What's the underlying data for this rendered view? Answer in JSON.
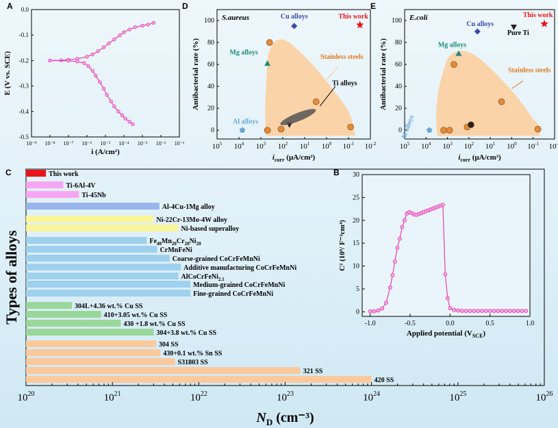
{
  "panels": {
    "A": "A",
    "B": "B",
    "C": "C",
    "D": "D",
    "E": "E"
  },
  "colors": {
    "pink": "#e040b0",
    "orange_region": "#fbd3a8",
    "red": "#e8161b",
    "blue_marker": "#3b49a8",
    "teal": "#1c8a7c",
    "al_blue": "#6aa7d6",
    "bar_orange": "#fbc99c",
    "bar_green": "#9ad89a",
    "bar_blue": "#9fd1ef",
    "bar_yellow": "#fbf59a",
    "bar_periwinkle": "#9ab4ec",
    "bar_pink": "#f7a6f3"
  },
  "chart_data": [
    {
      "id": "A",
      "type": "line",
      "xlabel": "i (A/cm²)",
      "ylabel": "E (V vs. SCE)",
      "xscale": "log",
      "xlim": [
        1e-09,
        0.1
      ],
      "ylim": [
        -0.5,
        0.0
      ],
      "x_ticks": [
        "10⁻⁹",
        "10⁻⁸",
        "10⁻⁷",
        "10⁻⁶",
        "10⁻⁵",
        "10⁻⁴",
        "10⁻³",
        "10⁻²",
        "10⁻¹"
      ],
      "y_ticks": [
        "0.0",
        "-0.1",
        "-0.2",
        "-0.3",
        "-0.4",
        "-0.5"
      ],
      "series": [
        {
          "x": [
            1e-08,
            4e-08,
            1e-07,
            3e-07,
            1e-06,
            2e-06,
            4e-06,
            8e-06,
            1.5e-05,
            3e-05,
            6e-05,
            0.0001,
            0.0002,
            0.0004,
            0.001,
            0.002,
            0.004
          ],
          "y": [
            -0.2,
            -0.199,
            -0.197,
            -0.193,
            -0.185,
            -0.176,
            -0.163,
            -0.148,
            -0.133,
            -0.117,
            -0.101,
            -0.089,
            -0.078,
            -0.069,
            -0.063,
            -0.059,
            -0.052
          ]
        },
        {
          "x": [
            1e-08,
            1e-07,
            3e-07,
            7e-07,
            1.2e-06,
            2e-06,
            3e-06,
            5e-06,
            8e-06,
            1.2e-05,
            2e-05,
            3e-05,
            5e-05,
            8e-05,
            0.00012,
            0.0002,
            0.0003
          ],
          "y": [
            -0.2,
            -0.201,
            -0.204,
            -0.21,
            -0.222,
            -0.24,
            -0.26,
            -0.285,
            -0.31,
            -0.335,
            -0.36,
            -0.38,
            -0.4,
            -0.415,
            -0.428,
            -0.44,
            -0.45
          ]
        }
      ]
    },
    {
      "id": "B",
      "type": "line",
      "xlabel": "Applied potential (V",
      "xlabel_sub": "SCE",
      "xlabel_end": ")",
      "ylabel": "C² (10⁹/ F⁻²cm⁴)",
      "xlim": [
        -1.1,
        1.0
      ],
      "ylim": [
        -1,
        30
      ],
      "x_ticks": [
        "-1.0",
        "-0.5",
        "0.0",
        "0.5",
        "1.0"
      ],
      "y_ticks": [
        "0",
        "5",
        "10",
        "15",
        "20",
        "25",
        "30"
      ],
      "x": [
        -1.0,
        -0.95,
        -0.9,
        -0.85,
        -0.8,
        -0.75,
        -0.72,
        -0.69,
        -0.66,
        -0.63,
        -0.6,
        -0.57,
        -0.54,
        -0.51,
        -0.48,
        -0.45,
        -0.42,
        -0.39,
        -0.36,
        -0.33,
        -0.3,
        -0.27,
        -0.24,
        -0.21,
        -0.18,
        -0.15,
        -0.12,
        -0.09,
        -0.06,
        -0.03,
        0.0,
        0.05,
        0.1,
        0.15,
        0.2,
        0.25,
        0.3,
        0.35,
        0.4,
        0.45,
        0.5,
        0.55,
        0.6,
        0.65,
        0.7,
        0.75,
        0.8,
        0.85,
        0.9,
        0.95
      ],
      "y": [
        0.1,
        0.1,
        0.3,
        0.7,
        2.0,
        5.3,
        8.0,
        11.0,
        14.0,
        16.0,
        18.5,
        20.0,
        21.5,
        21.8,
        21.6,
        21.3,
        21.2,
        21.4,
        21.6,
        21.8,
        22.0,
        22.2,
        22.4,
        22.6,
        22.8,
        23.0,
        23.2,
        23.4,
        8.2,
        3.0,
        0.8,
        0.4,
        0.3,
        0.2,
        0.2,
        0.2,
        0.2,
        0.2,
        0.2,
        0.2,
        0.2,
        0.2,
        0.2,
        0.2,
        0.2,
        0.2,
        0.2,
        0.2,
        0.2,
        0.2
      ]
    },
    {
      "id": "C",
      "type": "bar",
      "orientation": "horizontal",
      "xlabel": "N",
      "xlabel_sub": "D",
      "xlabel_end": " (cm⁻³)",
      "ylabel": "Types of alloys",
      "xscale": "log",
      "xlim": [
        1e+20,
        1e+26
      ],
      "x_ticks": [
        {
          "base": "10",
          "exp": "20"
        },
        {
          "base": "10",
          "exp": "21"
        },
        {
          "base": "10",
          "exp": "22"
        },
        {
          "base": "10",
          "exp": "23"
        },
        {
          "base": "10",
          "exp": "24"
        },
        {
          "base": "10",
          "exp": "25"
        },
        {
          "base": "10",
          "exp": "26"
        }
      ],
      "bars": [
        {
          "label": "This work",
          "value": 1.7e+20,
          "group": "red"
        },
        {
          "label": "Ti-6Al-4V",
          "value": 2.7e+20,
          "group": "pink"
        },
        {
          "label": "Ti-45Nb",
          "value": 4.1e+20,
          "group": "pink"
        },
        {
          "label": "Al-4Cu-1Mg alloy",
          "value": 3.5e+21,
          "group": "periwinkle"
        },
        {
          "label": "Ni-22Cr-13Mo-4W alloy",
          "value": 3e+21,
          "group": "yellow"
        },
        {
          "label": "Ni-based superalloy",
          "value": 5.8e+21,
          "group": "yellow"
        },
        {
          "label": "Fe40Mn20Cr20Ni20",
          "value": 2.5e+21,
          "group": "blue"
        },
        {
          "label": "CrMnFeNi",
          "value": 3.3e+21,
          "group": "blue"
        },
        {
          "label": "Coarse-grained CoCrFeMnNi",
          "value": 4.6e+21,
          "group": "blue"
        },
        {
          "label": "Additive manufacturing CoCrFeMnNi",
          "value": 6.2e+21,
          "group": "blue"
        },
        {
          "label": "AlCoCrFeNi2.1",
          "value": 5.8e+21,
          "group": "blue"
        },
        {
          "label": "Medium-grained CoCrFeMnNi",
          "value": 8e+21,
          "group": "blue"
        },
        {
          "label": "Fine-grained CoCrFeMnNi",
          "value": 8e+21,
          "group": "blue"
        },
        {
          "label": "304L+4.36 wt.% Cu  SS",
          "value": 3.4e+20,
          "group": "green"
        },
        {
          "label": "410+3.05 wt.% Cu SS",
          "value": 7.4e+20,
          "group": "green"
        },
        {
          "label": "430 +1.8 wt.% Cu SS",
          "value": 1.25e+21,
          "group": "green"
        },
        {
          "label": "304+3.8 wt.% Cu SS",
          "value": 3e+21,
          "group": "green"
        },
        {
          "label": "304 SS",
          "value": 3.2e+21,
          "group": "orange"
        },
        {
          "label": "430+0.1 wt.% Sn SS",
          "value": 3.6e+21,
          "group": "orange"
        },
        {
          "label": "S31803 SS",
          "value": 5.3e+21,
          "group": "orange"
        },
        {
          "label": "321 SS",
          "value": 1.5e+23,
          "group": "orange"
        },
        {
          "label": "420 SS",
          "value": 1e+24,
          "group": "orange"
        }
      ],
      "label_subscripts": {
        "Fe40Mn20Cr20Ni20": [
          [
            "Fe",
            ""
          ],
          [
            "40",
            "sub"
          ],
          [
            "Mn",
            ""
          ],
          [
            "20",
            "sub"
          ],
          [
            "Cr",
            ""
          ],
          [
            "20",
            "sub"
          ],
          [
            "Ni",
            ""
          ],
          [
            "20",
            "sub"
          ]
        ],
        "AlCoCrFeNi2.1": [
          [
            "AlCoCrFeNi",
            ""
          ],
          [
            "2.1",
            "sub"
          ]
        ]
      }
    },
    {
      "id": "D",
      "type": "scatter",
      "title": "S.aureus",
      "xlabel": "i",
      "xlabel_sub": "corr",
      "xlabel_end": " (μA/cm²)",
      "ylabel": "Antibacterial rate (%)",
      "xscale": "log",
      "xaxis_reversed": true,
      "xlim": [
        100000.0,
        0.01
      ],
      "ylim": [
        -8,
        110
      ],
      "x_ticks": [
        {
          "base": "10",
          "exp": "5"
        },
        {
          "base": "10",
          "exp": "4"
        },
        {
          "base": "10",
          "exp": "3"
        },
        {
          "base": "10",
          "exp": "2"
        },
        {
          "base": "10",
          "exp": "1"
        },
        {
          "base": "10",
          "exp": "0"
        },
        {
          "base": "10",
          "exp": "-1"
        },
        {
          "base": "10",
          "exp": "-2"
        }
      ],
      "y_ticks": [
        "0",
        "20",
        "40",
        "60",
        "80",
        "100"
      ],
      "labels": [
        {
          "text": "Cu alloys",
          "x": 30,
          "y": 102,
          "color": "#3b49a8"
        },
        {
          "text": "This work",
          "x": 0.06,
          "y": 102,
          "color": "#e8161b"
        },
        {
          "text": "Mg alloys",
          "x": 6000,
          "y": 69,
          "color": "#1c8a7c"
        },
        {
          "text": "Stainless steels",
          "x": 0.2,
          "y": 65,
          "color": "#e07a1a"
        },
        {
          "text": "Ti alloys",
          "x": 0.15,
          "y": 41,
          "color": "#000000"
        },
        {
          "text": "Al alloys",
          "x": 5000,
          "y": 6,
          "color": "#6aa7d6"
        }
      ],
      "points": [
        {
          "x": 30,
          "y": 95,
          "marker": "diamond",
          "color": "#3b49a8"
        },
        {
          "x": 0.03,
          "y": 96,
          "marker": "star",
          "color": "#e8161b"
        },
        {
          "x": 500,
          "y": 61,
          "marker": "triangle",
          "color": "#1c8a7c"
        },
        {
          "x": 7000,
          "y": 0,
          "marker": "pentagon",
          "color": "#6aa7d6"
        },
        {
          "x": 400,
          "y": 80,
          "marker": "circle",
          "color": "#e58a3a"
        },
        {
          "x": 3,
          "y": 26,
          "marker": "circle",
          "color": "#e58a3a"
        },
        {
          "x": 0.08,
          "y": 3,
          "marker": "circle",
          "color": "#e58a3a"
        },
        {
          "x": 500,
          "y": 0,
          "marker": "circle",
          "color": "#e58a3a"
        },
        {
          "x": 120,
          "y": 1,
          "marker": "circle",
          "color": "#e58a3a"
        },
        {
          "x": 50,
          "y": 5,
          "marker": "triangle-down",
          "color": "#222222"
        }
      ]
    },
    {
      "id": "E",
      "type": "scatter",
      "title": "E.coli",
      "xlabel": "i",
      "xlabel_sub": "corr",
      "xlabel_end": " (μA/cm²)",
      "ylabel": "Antibacterial rate (%)",
      "xscale": "log",
      "xaxis_reversed": true,
      "xlim": [
        100000.0,
        0.01
      ],
      "ylim": [
        -8,
        110
      ],
      "x_ticks": [
        {
          "base": "10",
          "exp": "5"
        },
        {
          "base": "10",
          "exp": "4"
        },
        {
          "base": "10",
          "exp": "3"
        },
        {
          "base": "10",
          "exp": "2"
        },
        {
          "base": "10",
          "exp": "1"
        },
        {
          "base": "10",
          "exp": "0"
        },
        {
          "base": "10",
          "exp": "-1"
        },
        {
          "base": "10",
          "exp": "-2"
        }
      ],
      "y_ticks": [
        "0",
        "20",
        "40",
        "60",
        "80",
        "100"
      ],
      "labels": [
        {
          "text": "This work",
          "x": 0.06,
          "y": 103,
          "color": "#e8161b"
        },
        {
          "text": "Cu alloys",
          "x": 30,
          "y": 95,
          "color": "#3b49a8"
        },
        {
          "text": "Pure Ti",
          "x": 0.5,
          "y": 87,
          "color": "#000000"
        },
        {
          "text": "Mg alloys",
          "x": 600,
          "y": 76,
          "color": "#1c8a7c"
        },
        {
          "text": "Stainless steels",
          "x": 0.15,
          "y": 53,
          "color": "#e07a1a"
        },
        {
          "text": "Al alloys",
          "x": 60000,
          "y": 2,
          "color": "#6aa7d6"
        }
      ],
      "points": [
        {
          "x": 0.03,
          "y": 97,
          "marker": "star",
          "color": "#e8161b"
        },
        {
          "x": 0.8,
          "y": 94,
          "marker": "triangle-down",
          "color": "#222222"
        },
        {
          "x": 40,
          "y": 90,
          "marker": "diamond",
          "color": "#3b49a8"
        },
        {
          "x": 300,
          "y": 70,
          "marker": "triangle",
          "color": "#1c8a7c"
        },
        {
          "x": 7000,
          "y": 0,
          "marker": "pentagon",
          "color": "#6aa7d6"
        },
        {
          "x": 500,
          "y": 60,
          "marker": "circle",
          "color": "#e58a3a"
        },
        {
          "x": 3,
          "y": 26,
          "marker": "circle",
          "color": "#e58a3a"
        },
        {
          "x": 0.06,
          "y": 1,
          "marker": "circle",
          "color": "#e58a3a"
        },
        {
          "x": 1500,
          "y": 0,
          "marker": "circle",
          "color": "#e58a3a"
        },
        {
          "x": 800,
          "y": 0,
          "marker": "circle",
          "color": "#e58a3a"
        },
        {
          "x": 120,
          "y": 3,
          "marker": "circle",
          "color": "#e58a3a"
        },
        {
          "x": 80,
          "y": 5,
          "marker": "circle",
          "color": "#222222"
        }
      ]
    }
  ]
}
